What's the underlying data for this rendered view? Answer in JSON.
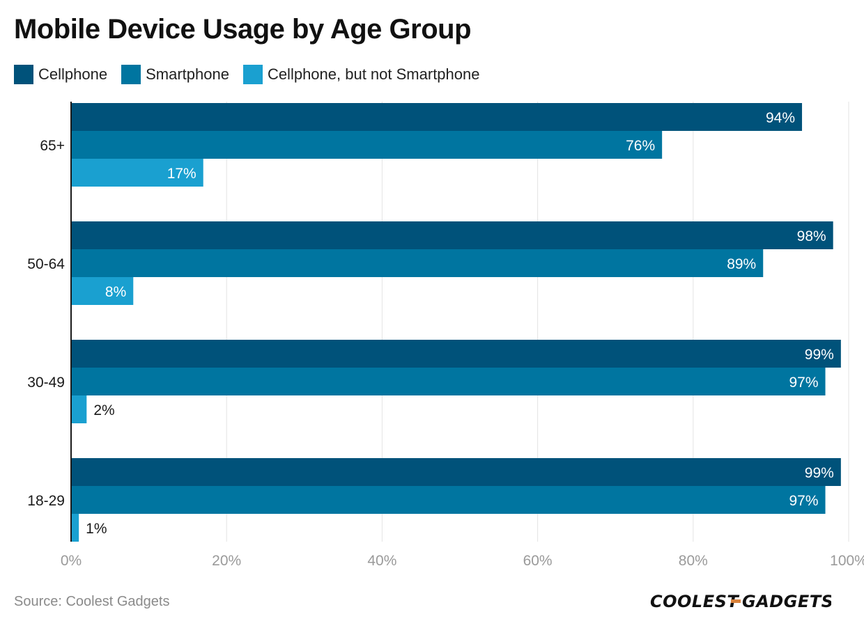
{
  "title": "Mobile Device Usage by Age Group",
  "legend": [
    {
      "label": "Cellphone",
      "color": "#00527a"
    },
    {
      "label": "Smartphone",
      "color": "#0075a0"
    },
    {
      "label": "Cellphone, but not Smartphone",
      "color": "#1aa0d0"
    }
  ],
  "chart_data": {
    "type": "bar",
    "orientation": "horizontal",
    "title": "Mobile Device Usage by Age Group",
    "categories": [
      "65+",
      "50-64",
      "30-49",
      "18-29"
    ],
    "series": [
      {
        "name": "Cellphone",
        "color": "#00527a",
        "values": [
          94,
          98,
          99,
          99
        ],
        "labels": [
          "94%",
          "98%",
          "99%",
          "99%"
        ]
      },
      {
        "name": "Smartphone",
        "color": "#0075a0",
        "values": [
          76,
          89,
          97,
          97
        ],
        "labels": [
          "76%",
          "89%",
          "97%",
          "97%"
        ]
      },
      {
        "name": "Cellphone, but not Smartphone",
        "color": "#1aa0d0",
        "values": [
          17,
          8,
          2,
          1
        ],
        "labels": [
          "17%",
          "8%",
          "2%",
          "1%"
        ]
      }
    ],
    "xlim": [
      0,
      100
    ],
    "xticks": [
      0,
      20,
      40,
      60,
      80,
      100
    ],
    "xtick_labels": [
      "0%",
      "20%",
      "40%",
      "60%",
      "80%",
      "100%"
    ],
    "xlabel": "",
    "ylabel": "",
    "grid": "vertical",
    "legend_position": "top-left"
  },
  "source": "Source: Coolest Gadgets",
  "logo": {
    "text": "COOLEST-GADGETS",
    "part1": "COOLEST",
    "part2": "GADGETS",
    "dash_color": "#d9823b"
  }
}
